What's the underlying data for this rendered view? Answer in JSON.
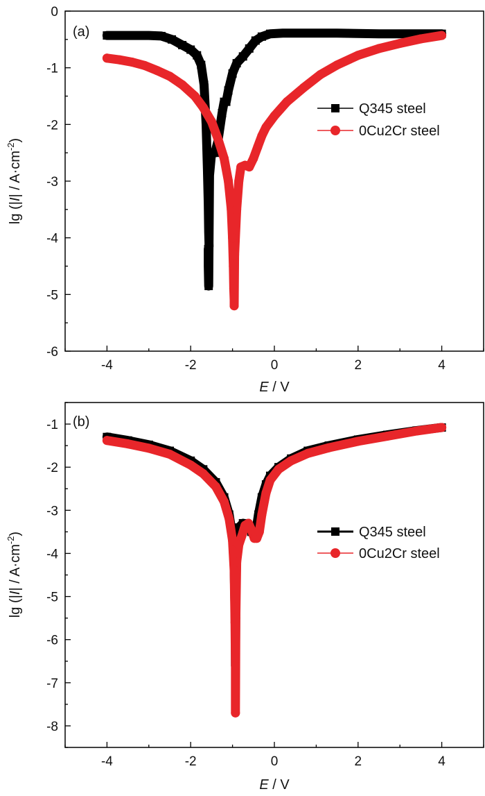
{
  "chart_data": [
    {
      "type": "line",
      "panel_label": "(a)",
      "xlabel": {
        "var": "E",
        "unit": " / V"
      },
      "ylabel": {
        "pre": "lg (|",
        "var": "I",
        "post": "| / A·cm",
        "sup": "-2",
        "close": ")"
      },
      "xlim": [
        -5,
        5
      ],
      "ylim": [
        -6,
        0
      ],
      "xticks": [
        -4,
        -2,
        0,
        2,
        4
      ],
      "yticks": [
        0,
        -1,
        -2,
        -3,
        -4,
        -5,
        -6
      ],
      "legend_position": "right-middle",
      "series": [
        {
          "name": "Q345 steel",
          "color": "#000000",
          "marker": "square",
          "x": [
            -4.0,
            -3.5,
            -3.0,
            -2.7,
            -2.45,
            -2.2,
            -2.0,
            -1.85,
            -1.75,
            -1.68,
            -1.63,
            -1.6,
            -1.58,
            -1.57,
            -1.56,
            -1.58,
            -1.58,
            -1.57,
            -1.55,
            -1.5,
            -1.42,
            -1.35,
            -1.25,
            -1.2,
            -1.15,
            -1.1,
            -1.0,
            -0.9,
            -0.75,
            -0.6,
            -0.45,
            -0.3,
            -0.1,
            0.2,
            0.6,
            1.5,
            2.5,
            3.5,
            4.0
          ],
          "y": [
            -0.43,
            -0.43,
            -0.43,
            -0.44,
            -0.5,
            -0.6,
            -0.68,
            -0.78,
            -0.95,
            -1.3,
            -2.0,
            -2.8,
            -3.4,
            -3.9,
            -4.15,
            -4.2,
            -4.5,
            -4.85,
            -2.9,
            -2.5,
            -2.5,
            -2.3,
            -1.8,
            -1.6,
            -1.6,
            -1.4,
            -1.1,
            -0.92,
            -0.8,
            -0.66,
            -0.52,
            -0.45,
            -0.4,
            -0.39,
            -0.39,
            -0.39,
            -0.4,
            -0.4,
            -0.4
          ]
        },
        {
          "name": "0Cu2Cr steel",
          "color": "#e8262a",
          "marker": "circle",
          "x": [
            -4.0,
            -3.7,
            -3.4,
            -3.1,
            -2.8,
            -2.5,
            -2.2,
            -1.9,
            -1.7,
            -1.5,
            -1.35,
            -1.2,
            -1.1,
            -1.03,
            -1.0,
            -0.98,
            -0.97,
            -0.96,
            -0.96,
            -0.95,
            -0.9,
            -0.85,
            -0.8,
            -0.7,
            -0.6,
            -0.5,
            -0.4,
            -0.3,
            -0.2,
            0.0,
            0.3,
            0.7,
            1.1,
            1.5,
            2.0,
            2.5,
            3.0,
            3.5,
            4.0
          ],
          "y": [
            -0.83,
            -0.86,
            -0.9,
            -0.96,
            -1.05,
            -1.15,
            -1.3,
            -1.5,
            -1.7,
            -1.95,
            -2.25,
            -2.6,
            -3.0,
            -3.5,
            -4.0,
            -4.5,
            -4.9,
            -5.1,
            -5.2,
            -4.3,
            -3.5,
            -3.0,
            -2.75,
            -2.72,
            -2.75,
            -2.6,
            -2.4,
            -2.2,
            -2.05,
            -1.85,
            -1.6,
            -1.35,
            -1.12,
            -0.95,
            -0.78,
            -0.66,
            -0.57,
            -0.49,
            -0.43
          ]
        }
      ]
    },
    {
      "type": "line",
      "panel_label": "(b)",
      "xlabel": {
        "var": "E",
        "unit": " / V"
      },
      "ylabel": {
        "pre": "lg (|",
        "var": "I",
        "post": "| / A·cm",
        "sup": "-2",
        "close": ")"
      },
      "xlim": [
        -5,
        5
      ],
      "ylim": [
        -8.5,
        -0.5
      ],
      "xticks": [
        -4,
        -2,
        0,
        2,
        4
      ],
      "yticks": [
        -1,
        -2,
        -3,
        -4,
        -5,
        -6,
        -7,
        -8
      ],
      "legend_position": "right-middle",
      "series": [
        {
          "name": "Q345 steel",
          "color": "#000000",
          "marker": "square",
          "x": [
            -4.0,
            -3.5,
            -3.0,
            -2.5,
            -2.0,
            -1.7,
            -1.4,
            -1.2,
            -1.08,
            -1.0,
            -0.96,
            -0.94,
            -0.93,
            -0.93,
            -0.92,
            -0.9,
            -0.85,
            -0.75,
            -0.65,
            -0.55,
            -0.45,
            -0.38,
            -0.3,
            -0.2,
            -0.1,
            0.1,
            0.4,
            0.8,
            1.3,
            2.0,
            2.7,
            3.4,
            4.0
          ],
          "y": [
            -1.3,
            -1.38,
            -1.48,
            -1.62,
            -1.85,
            -2.05,
            -2.35,
            -2.7,
            -3.1,
            -3.6,
            -4.3,
            -5.3,
            -6.0,
            -6.6,
            -5.0,
            -3.9,
            -3.4,
            -3.3,
            -3.35,
            -3.5,
            -3.55,
            -3.1,
            -2.7,
            -2.4,
            -2.2,
            -2.0,
            -1.8,
            -1.62,
            -1.5,
            -1.36,
            -1.25,
            -1.15,
            -1.08
          ]
        },
        {
          "name": "0Cu2Cr steel",
          "color": "#e8262a",
          "marker": "circle",
          "x": [
            -4.0,
            -3.5,
            -3.0,
            -2.5,
            -2.0,
            -1.7,
            -1.4,
            -1.2,
            -1.08,
            -1.0,
            -0.96,
            -0.94,
            -0.93,
            -0.93,
            -0.92,
            -0.9,
            -0.85,
            -0.78,
            -0.7,
            -0.62,
            -0.55,
            -0.48,
            -0.42,
            -0.36,
            -0.3,
            -0.2,
            -0.1,
            0.1,
            0.4,
            0.8,
            1.3,
            2.0,
            2.7,
            3.4,
            4.0
          ],
          "y": [
            -1.38,
            -1.46,
            -1.56,
            -1.7,
            -1.95,
            -2.15,
            -2.45,
            -2.8,
            -3.2,
            -3.7,
            -4.4,
            -5.6,
            -6.6,
            -7.7,
            -5.5,
            -4.2,
            -3.8,
            -3.6,
            -3.35,
            -3.3,
            -3.45,
            -3.65,
            -3.65,
            -3.5,
            -3.1,
            -2.6,
            -2.3,
            -2.05,
            -1.85,
            -1.68,
            -1.55,
            -1.4,
            -1.28,
            -1.16,
            -1.08
          ]
        }
      ]
    }
  ]
}
